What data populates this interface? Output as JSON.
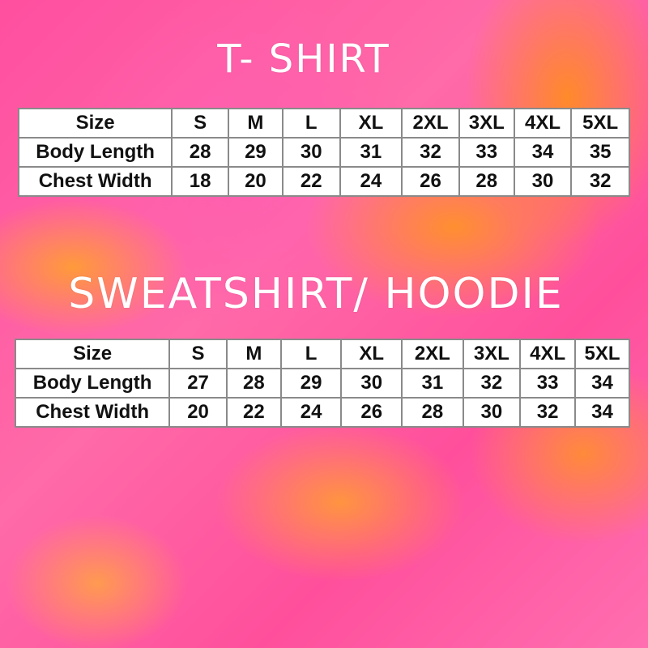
{
  "tshirt": {
    "title": "T- SHIRT",
    "header": [
      "Size",
      "S",
      "M",
      "L",
      "XL",
      "2XL",
      "3XL",
      "4XL",
      "5XL"
    ],
    "rows": [
      [
        "Body Length",
        "28",
        "29",
        "30",
        "31",
        "32",
        "33",
        "34",
        "35"
      ],
      [
        "Chest Width",
        "18",
        "20",
        "22",
        "24",
        "26",
        "28",
        "30",
        "32"
      ]
    ]
  },
  "sweatshirt": {
    "title": "SWEATSHIRT/ HOODIE",
    "header": [
      "Size",
      "S",
      "M",
      "L",
      "XL",
      "2XL",
      "3XL",
      "4XL",
      "5XL"
    ],
    "rows": [
      [
        "Body Length",
        "27",
        "28",
        "29",
        "30",
        "31",
        "32",
        "33",
        "34"
      ],
      [
        "Chest Width",
        "20",
        "22",
        "24",
        "26",
        "28",
        "30",
        "32",
        "34"
      ]
    ]
  },
  "colors": {
    "pink": "#ff4fa0",
    "orange": "#ff8a2a",
    "title": "#ffffff"
  }
}
